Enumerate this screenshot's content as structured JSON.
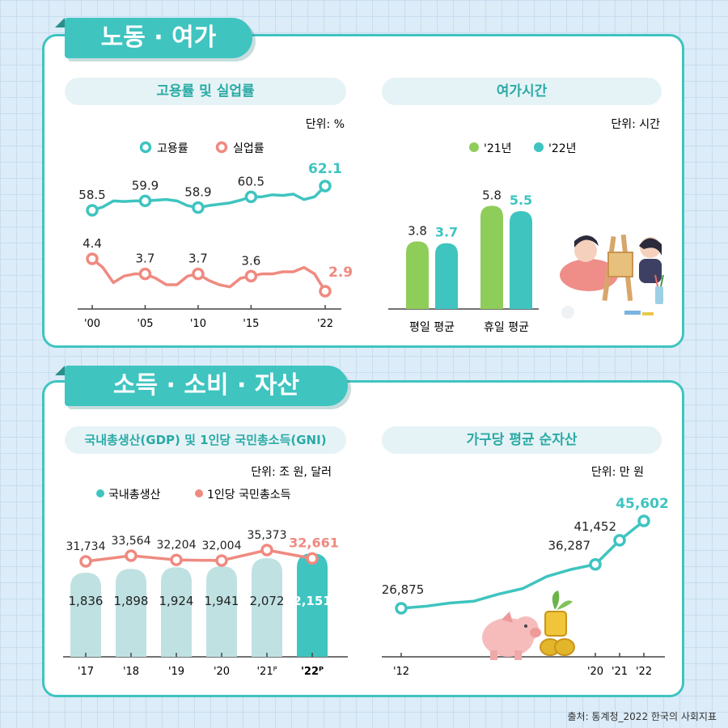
{
  "sections": {
    "labor": "노동 · 여가",
    "income": "소득 · 소비 · 자산"
  },
  "source": "출처: 통계청_2022 한국의 사회지표",
  "colors": {
    "teal": "#3fc4c0",
    "salmon": "#ef8a80",
    "green": "#8fcd5a",
    "light_teal": "#bfe1e2"
  },
  "chart_data": [
    {
      "id": "employment",
      "type": "line",
      "title": "고용률 및 실업률",
      "unit": "단위: %",
      "x_ticks": [
        "'00",
        "'05",
        "'10",
        "'15",
        "'22"
      ],
      "series": [
        {
          "name": "고용률",
          "x": [
            2000,
            2001,
            2002,
            2003,
            2004,
            2005,
            2006,
            2007,
            2008,
            2009,
            2010,
            2011,
            2012,
            2013,
            2014,
            2015,
            2016,
            2017,
            2018,
            2019,
            2020,
            2021,
            2022
          ],
          "values": [
            58.5,
            59.0,
            59.9,
            59.8,
            59.9,
            59.9,
            60.0,
            60.1,
            59.9,
            59.2,
            58.9,
            59.2,
            59.4,
            59.6,
            60.0,
            60.5,
            60.5,
            60.8,
            60.7,
            60.9,
            60.1,
            60.5,
            62.1
          ],
          "labels": {
            "2000": "58.5",
            "2005": "59.9",
            "2010": "58.9",
            "2015": "60.5",
            "2022": "62.1"
          }
        },
        {
          "name": "실업률",
          "x": [
            2000,
            2001,
            2002,
            2003,
            2004,
            2005,
            2006,
            2007,
            2008,
            2009,
            2010,
            2011,
            2012,
            2013,
            2014,
            2015,
            2016,
            2017,
            2018,
            2019,
            2020,
            2021,
            2022
          ],
          "values": [
            4.4,
            4.0,
            3.3,
            3.6,
            3.7,
            3.7,
            3.5,
            3.2,
            3.2,
            3.6,
            3.7,
            3.4,
            3.2,
            3.1,
            3.5,
            3.6,
            3.7,
            3.7,
            3.8,
            3.8,
            4.0,
            3.7,
            2.9
          ],
          "labels": {
            "2000": "4.4",
            "2005": "3.7",
            "2010": "3.7",
            "2015": "3.6",
            "2022": "2.9"
          }
        }
      ]
    },
    {
      "id": "leisure",
      "type": "bar",
      "title": "여가시간",
      "unit": "단위: 시간",
      "categories": [
        "평일 평균",
        "휴일 평균"
      ],
      "series": [
        {
          "name": "'21년",
          "values": [
            3.8,
            5.8
          ]
        },
        {
          "name": "'22년",
          "values": [
            3.7,
            5.5
          ]
        }
      ]
    },
    {
      "id": "gdp",
      "type": "bar",
      "title": "국내총생산(GDP) 및 1인당 국민총소득(GNI)",
      "unit": "단위: 조 원, 달러",
      "categories": [
        "'17",
        "'18",
        "'19",
        "'20",
        "'21ᴾ",
        "'22ᴾ"
      ],
      "series": [
        {
          "name": "국내총생산",
          "values": [
            1836,
            1898,
            1924,
            1941,
            2072,
            2151
          ]
        },
        {
          "name": "1인당 국민총소득",
          "values": [
            31734,
            33564,
            32204,
            32004,
            35373,
            32661
          ]
        }
      ]
    },
    {
      "id": "assets",
      "type": "line",
      "title": "가구당 평균 순자산",
      "unit": "단위: 만 원",
      "x_ticks": [
        "'12",
        "'20",
        "'21",
        "'22"
      ],
      "series": [
        {
          "name": "순자산",
          "x": [
            2012,
            2013,
            2014,
            2015,
            2016,
            2017,
            2018,
            2019,
            2020,
            2021,
            2022
          ],
          "values": [
            26875,
            27300,
            28000,
            28400,
            29900,
            31100,
            33700,
            35200,
            36287,
            41452,
            45602
          ],
          "labels": {
            "2012": "26,875",
            "2020": "36,287",
            "2021": "41,452",
            "2022": "45,602"
          }
        }
      ]
    }
  ]
}
